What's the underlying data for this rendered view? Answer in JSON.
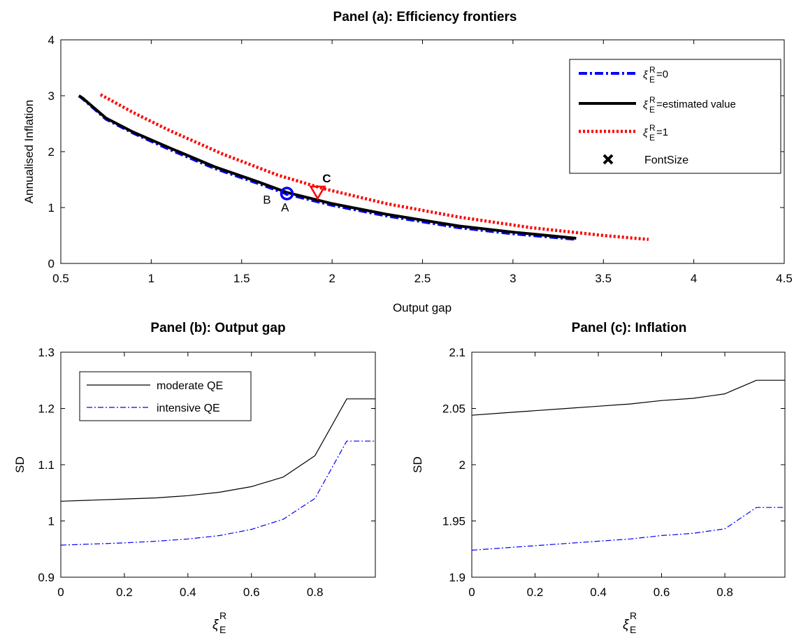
{
  "chart_data": [
    {
      "type": "line",
      "title": "Panel (a): Efficiency frontiers",
      "xlabel": "Output gap",
      "ylabel": "Annualised Inflation",
      "xlim": [
        0.5,
        4.5
      ],
      "ylim": [
        0,
        4
      ],
      "xticks": [
        "0.5",
        "1",
        "1.5",
        "2",
        "2.5",
        "3",
        "3.5",
        "4",
        "4.5"
      ],
      "yticks": [
        "0",
        "1",
        "2",
        "3",
        "4"
      ],
      "grid": false,
      "legend_position": "top-right",
      "series": [
        {
          "name_prefix": "ξ",
          "name_sup": "R",
          "name_sub": "E",
          "name_suffix": "=0",
          "color": "#0000ff",
          "style": "dashdot",
          "x": [
            0.6,
            0.62,
            0.75,
            0.9,
            1.1,
            1.35,
            1.6,
            1.75,
            2.0,
            2.3,
            2.7,
            3.0,
            3.35
          ],
          "y": [
            3.0,
            2.95,
            2.58,
            2.33,
            2.04,
            1.7,
            1.42,
            1.24,
            1.04,
            0.85,
            0.64,
            0.53,
            0.43
          ]
        },
        {
          "name_prefix": "ξ",
          "name_sup": "R",
          "name_sub": "E",
          "name_suffix": "=estimated value",
          "color": "#000000",
          "style": "solid",
          "x": [
            0.6,
            0.62,
            0.75,
            0.9,
            1.1,
            1.35,
            1.6,
            1.75,
            2.0,
            2.3,
            2.7,
            3.0,
            3.35
          ],
          "y": [
            3.0,
            2.96,
            2.6,
            2.35,
            2.07,
            1.73,
            1.45,
            1.27,
            1.07,
            0.88,
            0.67,
            0.56,
            0.45
          ]
        },
        {
          "name_prefix": "ξ",
          "name_sup": "R",
          "name_sub": "E",
          "name_suffix": "=1",
          "color": "#ff0000",
          "style": "dotted",
          "x": [
            0.72,
            0.9,
            1.1,
            1.4,
            1.7,
            1.95,
            2.3,
            2.7,
            3.1,
            3.5,
            3.75
          ],
          "y": [
            3.02,
            2.7,
            2.38,
            1.95,
            1.58,
            1.34,
            1.07,
            0.83,
            0.64,
            0.5,
            0.43
          ]
        }
      ],
      "markers": [
        {
          "label": "A",
          "x": 1.75,
          "y": 1.25,
          "shape": "circle",
          "color": "#0000ff",
          "label_color": "#000000",
          "label_dx": -0.01,
          "label_dy": -0.32
        },
        {
          "label": "B",
          "x": 1.75,
          "y": 1.24,
          "shape": "dot",
          "color": "#0000ff",
          "label_color": "#0000ff",
          "label_dx": -0.11,
          "label_dy": -0.17
        },
        {
          "label": "C",
          "x": 1.92,
          "y": 1.25,
          "shape": "triangle-down",
          "color": "#ff0000",
          "label_color": "#ff0000",
          "label_dx": 0.05,
          "label_dy": 0.2
        }
      ],
      "extra_legend_label": "FontSize"
    },
    {
      "type": "line",
      "title": "Panel (b): Output gap",
      "ylabel": "SD",
      "xlabel_prefix": "ξ",
      "xlabel_sup": "R",
      "xlabel_sub": "E",
      "xlim": [
        0,
        0.99
      ],
      "ylim": [
        0.9,
        1.3
      ],
      "xticks": [
        "0",
        "0.2",
        "0.4",
        "0.6",
        "0.8"
      ],
      "yticks": [
        "0.9",
        "1",
        "1.1",
        "1.2",
        "1.3"
      ],
      "grid": false,
      "legend_position": "top-left",
      "x": [
        0,
        0.1,
        0.2,
        0.3,
        0.4,
        0.5,
        0.6,
        0.7,
        0.8,
        0.9,
        0.99
      ],
      "series": [
        {
          "name": "moderate QE",
          "color": "#000000",
          "style": "solid",
          "values": [
            1.035,
            1.037,
            1.039,
            1.041,
            1.045,
            1.051,
            1.061,
            1.078,
            1.116,
            1.217,
            1.217
          ]
        },
        {
          "name": "intensive QE",
          "color": "#0000ff",
          "style": "dashdot",
          "values": [
            0.957,
            0.959,
            0.961,
            0.964,
            0.968,
            0.974,
            0.985,
            1.003,
            1.04,
            1.142,
            1.142
          ]
        }
      ]
    },
    {
      "type": "line",
      "title": "Panel (c): Inflation",
      "ylabel": "SD",
      "xlabel_prefix": "ξ",
      "xlabel_sup": "R",
      "xlabel_sub": "E",
      "xlim": [
        0,
        0.99
      ],
      "ylim": [
        1.9,
        2.1
      ],
      "xticks": [
        "0",
        "0.2",
        "0.4",
        "0.6",
        "0.8"
      ],
      "yticks": [
        "1.9",
        "1.95",
        "2",
        "2.05",
        "2.1"
      ],
      "grid": false,
      "legend_position": "none",
      "x": [
        0,
        0.1,
        0.2,
        0.3,
        0.4,
        0.5,
        0.6,
        0.7,
        0.8,
        0.9,
        0.99
      ],
      "series": [
        {
          "color": "#000000",
          "style": "solid",
          "values": [
            2.044,
            2.046,
            2.048,
            2.05,
            2.052,
            2.054,
            2.057,
            2.059,
            2.063,
            2.075,
            2.075
          ]
        },
        {
          "color": "#0000ff",
          "style": "dashdot",
          "values": [
            1.924,
            1.926,
            1.928,
            1.93,
            1.932,
            1.934,
            1.937,
            1.939,
            1.943,
            1.962,
            1.962
          ]
        }
      ]
    }
  ]
}
